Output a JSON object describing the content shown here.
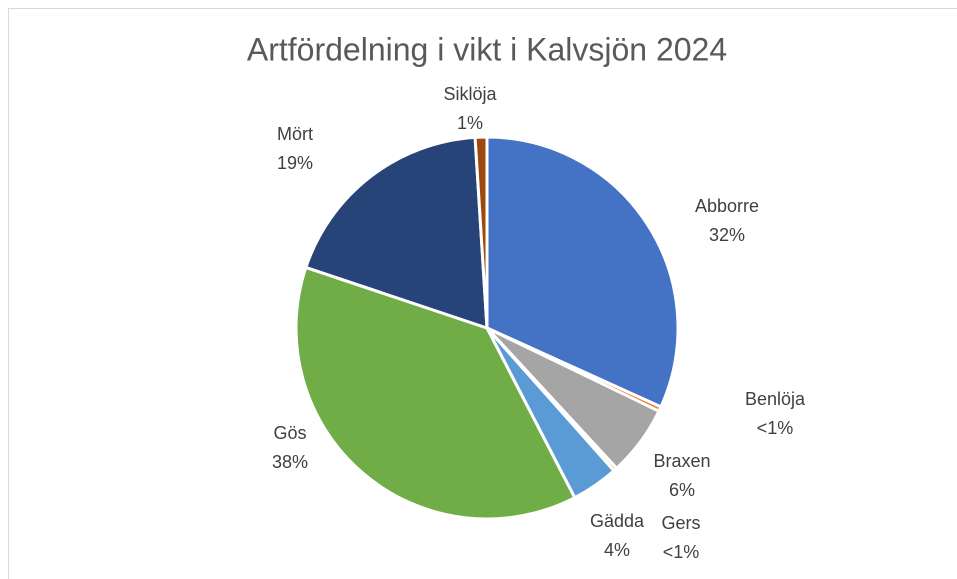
{
  "chart_data": {
    "type": "pie",
    "title": "Artfördelning i vikt i Kalvsjön 2024",
    "categories": [
      "Abborre",
      "Benlöja",
      "Braxen",
      "Gers",
      "Gädda",
      "Gös",
      "Mört",
      "Siklöja"
    ],
    "values": [
      32,
      0.4,
      6,
      0.3,
      4,
      38,
      19,
      1
    ],
    "value_labels": [
      "32%",
      "<1%",
      "6%",
      "<1%",
      "4%",
      "38%",
      "19%",
      "1%"
    ],
    "colors": [
      "#4472c4",
      "#ed7d31",
      "#a5a5a5",
      "#ffc000",
      "#5b9bd5",
      "#70ad47",
      "#264478",
      "#9e480e"
    ]
  }
}
